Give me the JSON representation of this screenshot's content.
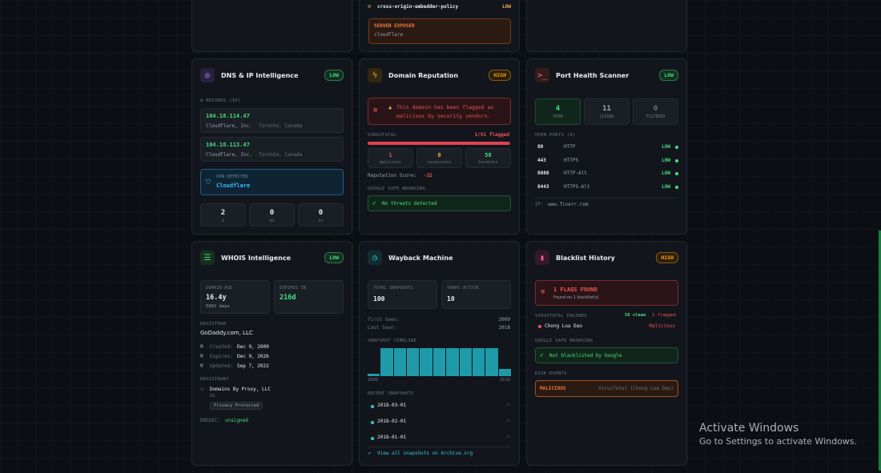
{
  "top_card": {
    "header_row": "cross-origin-embedder-policy",
    "header_badge": "LOW",
    "server_exposed_label": "SERVER EXPOSED",
    "server_exposed_value": "cloudflare"
  },
  "dns": {
    "title": "DNS & IP Intelligence",
    "badge": "LOW",
    "a_records_label": "A RECORDS (IP)",
    "records": [
      {
        "ip": "104.18.114.47",
        "org": "Cloudflare, Inc.",
        "loc": "Toronto, Canada"
      },
      {
        "ip": "104.18.113.47",
        "org": "Cloudflare, Inc.",
        "loc": "Toronto, Canada"
      }
    ],
    "cdn_label": "CDN DETECTED",
    "cdn_value": "Cloudflare",
    "counts": [
      {
        "value": "2",
        "key": "a"
      },
      {
        "value": "0",
        "key": "mx"
      },
      {
        "value": "0",
        "key": "ns"
      }
    ]
  },
  "reputation": {
    "title": "Domain Reputation",
    "badge": "HIGH",
    "alert": "This domain has been flagged as malicious by security vendors.",
    "virustotal_label": "VIRUSTOTAL",
    "flagged": "1/91 flagged",
    "flagged_fraction": 0.99,
    "stats": [
      {
        "value": "1",
        "key": "malicious"
      },
      {
        "value": "0",
        "key": "suspicious"
      },
      {
        "value": "58",
        "key": "harmless"
      }
    ],
    "score_label": "Reputation Score:",
    "score_value": "-32",
    "gsb_label": "GOOGLE SAFE BROWSING",
    "gsb_value": "No threats detected"
  },
  "ports": {
    "title": "Port Health Scanner",
    "badge": "LOW",
    "stats": [
      {
        "value": "4",
        "key": "OPEN"
      },
      {
        "value": "11",
        "key": "CLOSED"
      },
      {
        "value": "0",
        "key": "FILTERED"
      }
    ],
    "open_label": "OPEN PORTS (4)",
    "rows": [
      {
        "port": "80",
        "svc": "HTTP",
        "risk": "LOW"
      },
      {
        "port": "443",
        "svc": "HTTPS",
        "risk": "LOW"
      },
      {
        "port": "8080",
        "svc": "HTTP-Alt",
        "risk": "LOW"
      },
      {
        "port": "8443",
        "svc": "HTTPS-Alt",
        "risk": "LOW"
      }
    ],
    "ip_label": "IP:",
    "ip_value": "www.fiverr.com"
  },
  "whois": {
    "title": "WHOIS Intelligence",
    "badge": "LOW",
    "age_label": "DOMAIN AGE",
    "age_value": "16.4y",
    "age_days": "5992 days",
    "expires_label": "EXPIRES IN",
    "expires_value": "216d",
    "registrar_label": "REGISTRAR",
    "registrar_value": "GoDaddy.com, LLC",
    "dates": [
      {
        "key": "Created:",
        "value": "Dec 9, 2009"
      },
      {
        "key": "Expires:",
        "value": "Dec 9, 2026"
      },
      {
        "key": "Updated:",
        "value": "Sep 7, 2022"
      }
    ],
    "registrant_label": "REGISTRANT",
    "registrant_value": "Domains By Proxy, LLC",
    "registrant_country": "US",
    "privacy": "Privacy Protected",
    "dnssec_label": "DNSSEC:",
    "dnssec_value": "unsigned"
  },
  "wayback": {
    "title": "Wayback Machine",
    "snapshots_label": "TOTAL SNAPSHOTS",
    "snapshots_value": "100",
    "years_label": "YEARS ACTIVE",
    "years_value": "10",
    "first_label": "First Seen:",
    "first_value": "2009",
    "last_label": "Last Seen:",
    "last_value": "2018",
    "timeline_label": "SNAPSHOT TIMELINE",
    "timeline_start": "2009",
    "timeline_end": "2018",
    "timeline_values": [
      0.1,
      1,
      1,
      1,
      1,
      1,
      1,
      1,
      1,
      1,
      0.25
    ],
    "recent_label": "RECENT SNAPSHOTS",
    "recent": [
      "2018-03-01",
      "2018-02-01",
      "2018-01-01"
    ],
    "link": "View all snapshots on Archive.org"
  },
  "blacklist": {
    "title": "Blacklist History",
    "badge": "HIGH",
    "flags_title": "1 FLAGS FOUND",
    "flags_sub": "Found on 1 blacklist(s)",
    "engines_label": "VIRUSTOTAL ENGINES",
    "engines_clean": "58 clean",
    "engines_flagged": "1 flagged",
    "engine_name": "Chong Lua Dao",
    "engine_status": "Malicious",
    "gsb_label": "GOOGLE SAFE BROWSING",
    "gsb_value": "Not blacklisted by Google",
    "risk_label": "RISK EVENTS",
    "risk_tag": "MALICIOUS",
    "risk_source": "VirusTotal (Chong Lua Dao)"
  },
  "watermark": {
    "title": "Activate Windows",
    "sub": "Go to Settings to activate Windows."
  },
  "colors": {
    "accent_green": "#4ade80",
    "accent_red": "#f05252",
    "accent_amber": "#f59e0b",
    "accent_teal": "#1e9aa8"
  }
}
